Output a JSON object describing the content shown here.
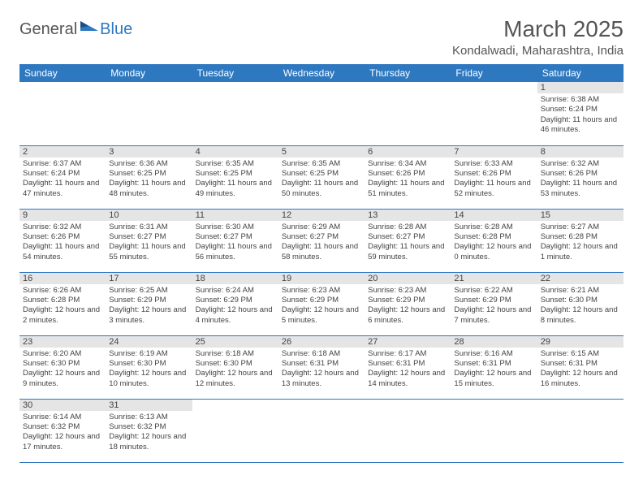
{
  "logo": {
    "part1": "General",
    "part2": "Blue"
  },
  "title": "March 2025",
  "location": "Kondalwadi, Maharashtra, India",
  "colors": {
    "header_bg": "#2e78c0",
    "header_fg": "#ffffff",
    "daynum_bg": "#e5e5e5",
    "row_border": "#2e78c0",
    "text": "#444444"
  },
  "weekdays": [
    "Sunday",
    "Monday",
    "Tuesday",
    "Wednesday",
    "Thursday",
    "Friday",
    "Saturday"
  ],
  "weeks": [
    [
      null,
      null,
      null,
      null,
      null,
      null,
      {
        "n": "1",
        "sr": "Sunrise: 6:38 AM",
        "ss": "Sunset: 6:24 PM",
        "dl": "Daylight: 11 hours and 46 minutes."
      }
    ],
    [
      {
        "n": "2",
        "sr": "Sunrise: 6:37 AM",
        "ss": "Sunset: 6:24 PM",
        "dl": "Daylight: 11 hours and 47 minutes."
      },
      {
        "n": "3",
        "sr": "Sunrise: 6:36 AM",
        "ss": "Sunset: 6:25 PM",
        "dl": "Daylight: 11 hours and 48 minutes."
      },
      {
        "n": "4",
        "sr": "Sunrise: 6:35 AM",
        "ss": "Sunset: 6:25 PM",
        "dl": "Daylight: 11 hours and 49 minutes."
      },
      {
        "n": "5",
        "sr": "Sunrise: 6:35 AM",
        "ss": "Sunset: 6:25 PM",
        "dl": "Daylight: 11 hours and 50 minutes."
      },
      {
        "n": "6",
        "sr": "Sunrise: 6:34 AM",
        "ss": "Sunset: 6:26 PM",
        "dl": "Daylight: 11 hours and 51 minutes."
      },
      {
        "n": "7",
        "sr": "Sunrise: 6:33 AM",
        "ss": "Sunset: 6:26 PM",
        "dl": "Daylight: 11 hours and 52 minutes."
      },
      {
        "n": "8",
        "sr": "Sunrise: 6:32 AM",
        "ss": "Sunset: 6:26 PM",
        "dl": "Daylight: 11 hours and 53 minutes."
      }
    ],
    [
      {
        "n": "9",
        "sr": "Sunrise: 6:32 AM",
        "ss": "Sunset: 6:26 PM",
        "dl": "Daylight: 11 hours and 54 minutes."
      },
      {
        "n": "10",
        "sr": "Sunrise: 6:31 AM",
        "ss": "Sunset: 6:27 PM",
        "dl": "Daylight: 11 hours and 55 minutes."
      },
      {
        "n": "11",
        "sr": "Sunrise: 6:30 AM",
        "ss": "Sunset: 6:27 PM",
        "dl": "Daylight: 11 hours and 56 minutes."
      },
      {
        "n": "12",
        "sr": "Sunrise: 6:29 AM",
        "ss": "Sunset: 6:27 PM",
        "dl": "Daylight: 11 hours and 58 minutes."
      },
      {
        "n": "13",
        "sr": "Sunrise: 6:28 AM",
        "ss": "Sunset: 6:27 PM",
        "dl": "Daylight: 11 hours and 59 minutes."
      },
      {
        "n": "14",
        "sr": "Sunrise: 6:28 AM",
        "ss": "Sunset: 6:28 PM",
        "dl": "Daylight: 12 hours and 0 minutes."
      },
      {
        "n": "15",
        "sr": "Sunrise: 6:27 AM",
        "ss": "Sunset: 6:28 PM",
        "dl": "Daylight: 12 hours and 1 minute."
      }
    ],
    [
      {
        "n": "16",
        "sr": "Sunrise: 6:26 AM",
        "ss": "Sunset: 6:28 PM",
        "dl": "Daylight: 12 hours and 2 minutes."
      },
      {
        "n": "17",
        "sr": "Sunrise: 6:25 AM",
        "ss": "Sunset: 6:29 PM",
        "dl": "Daylight: 12 hours and 3 minutes."
      },
      {
        "n": "18",
        "sr": "Sunrise: 6:24 AM",
        "ss": "Sunset: 6:29 PM",
        "dl": "Daylight: 12 hours and 4 minutes."
      },
      {
        "n": "19",
        "sr": "Sunrise: 6:23 AM",
        "ss": "Sunset: 6:29 PM",
        "dl": "Daylight: 12 hours and 5 minutes."
      },
      {
        "n": "20",
        "sr": "Sunrise: 6:23 AM",
        "ss": "Sunset: 6:29 PM",
        "dl": "Daylight: 12 hours and 6 minutes."
      },
      {
        "n": "21",
        "sr": "Sunrise: 6:22 AM",
        "ss": "Sunset: 6:29 PM",
        "dl": "Daylight: 12 hours and 7 minutes."
      },
      {
        "n": "22",
        "sr": "Sunrise: 6:21 AM",
        "ss": "Sunset: 6:30 PM",
        "dl": "Daylight: 12 hours and 8 minutes."
      }
    ],
    [
      {
        "n": "23",
        "sr": "Sunrise: 6:20 AM",
        "ss": "Sunset: 6:30 PM",
        "dl": "Daylight: 12 hours and 9 minutes."
      },
      {
        "n": "24",
        "sr": "Sunrise: 6:19 AM",
        "ss": "Sunset: 6:30 PM",
        "dl": "Daylight: 12 hours and 10 minutes."
      },
      {
        "n": "25",
        "sr": "Sunrise: 6:18 AM",
        "ss": "Sunset: 6:30 PM",
        "dl": "Daylight: 12 hours and 12 minutes."
      },
      {
        "n": "26",
        "sr": "Sunrise: 6:18 AM",
        "ss": "Sunset: 6:31 PM",
        "dl": "Daylight: 12 hours and 13 minutes."
      },
      {
        "n": "27",
        "sr": "Sunrise: 6:17 AM",
        "ss": "Sunset: 6:31 PM",
        "dl": "Daylight: 12 hours and 14 minutes."
      },
      {
        "n": "28",
        "sr": "Sunrise: 6:16 AM",
        "ss": "Sunset: 6:31 PM",
        "dl": "Daylight: 12 hours and 15 minutes."
      },
      {
        "n": "29",
        "sr": "Sunrise: 6:15 AM",
        "ss": "Sunset: 6:31 PM",
        "dl": "Daylight: 12 hours and 16 minutes."
      }
    ],
    [
      {
        "n": "30",
        "sr": "Sunrise: 6:14 AM",
        "ss": "Sunset: 6:32 PM",
        "dl": "Daylight: 12 hours and 17 minutes."
      },
      {
        "n": "31",
        "sr": "Sunrise: 6:13 AM",
        "ss": "Sunset: 6:32 PM",
        "dl": "Daylight: 12 hours and 18 minutes."
      },
      null,
      null,
      null,
      null,
      null
    ]
  ]
}
